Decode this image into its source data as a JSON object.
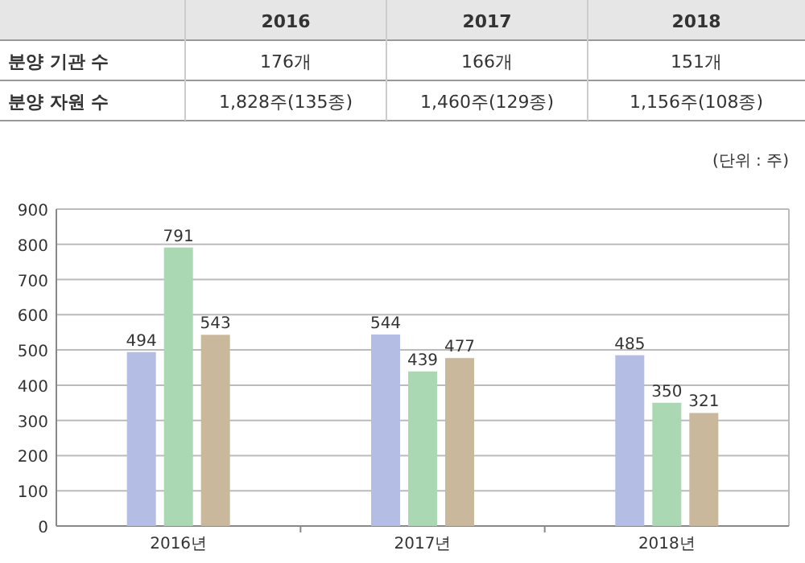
{
  "chart_data": [
    {
      "type": "other",
      "annotations": [
        null,
        "2016",
        "2017",
        "2018",
        "분양 기관 수",
        "176개",
        "166개",
        "151개",
        "분양 자원 수",
        "1,828주(135종)",
        "1,460주(129종)",
        "1,156주(108종)"
      ]
    },
    {
      "type": "bar",
      "categories": [
        "2016년",
        "2017년",
        "2018년"
      ],
      "series": [
        {
          "color": "#b4bde3",
          "values": [
            494,
            544,
            485
          ]
        },
        {
          "color": "#a9d8b2",
          "values": [
            791,
            439,
            350
          ]
        },
        {
          "color": "#c9b89b",
          "values": [
            543,
            477,
            321
          ]
        }
      ],
      "ylim": [
        0,
        900
      ],
      "yticks": [
        0,
        100,
        200,
        300,
        400,
        500,
        600,
        700,
        800,
        900
      ],
      "grid": "y",
      "data_labels": true,
      "annotations": [
        "(단위 : 주)"
      ]
    }
  ]
}
